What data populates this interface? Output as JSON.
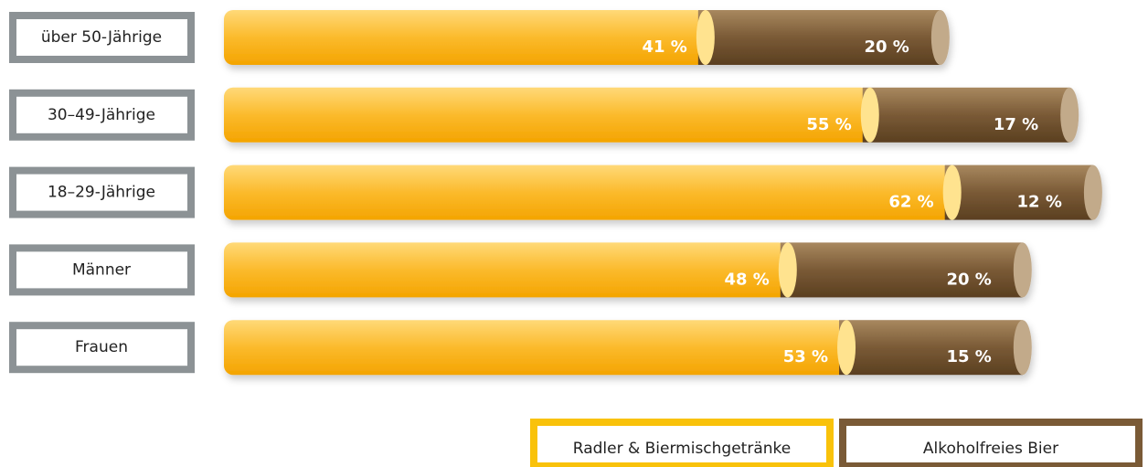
{
  "chart_data": {
    "type": "stacked-bar-horizontal",
    "categories": [
      "über 50-Jährige",
      "30–49-Jährige",
      "18–29-Jährige",
      "Männer",
      "Frauen"
    ],
    "series": [
      {
        "name": "Radler & Biermischgetränke",
        "color": "#f9b21d",
        "values": [
          41,
          55,
          62,
          48,
          53
        ],
        "value_labels": [
          "41 %",
          "55 %",
          "62 %",
          "48 %",
          "53 %"
        ]
      },
      {
        "name": "Alkoholfreies Bier",
        "color": "#7a5a36",
        "values": [
          20,
          17,
          12,
          20,
          15
        ],
        "value_labels": [
          "20 %",
          "17 %",
          "12 %",
          "20 %",
          "15 %"
        ]
      }
    ]
  }
}
